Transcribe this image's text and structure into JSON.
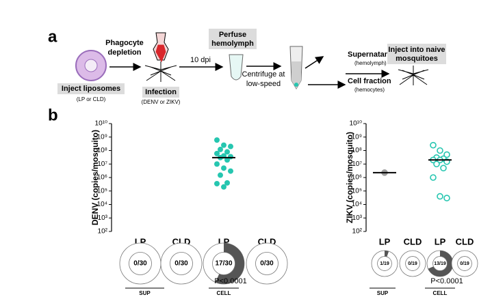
{
  "panel_a": {
    "label": "a",
    "phagocyte_depletion": [
      "Phagocyte",
      "depletion"
    ],
    "inject_liposomes": "Inject liposomes",
    "liposome_note": "(LP or CLD)",
    "infection": "Infection",
    "infection_note": "(DENV or ZIKV)",
    "dpi": "10 dpi",
    "perfuse": [
      "Perfuse",
      "hemolymph"
    ],
    "centrifuge": [
      "Centrifuge at",
      "low-speed"
    ],
    "supernatant": "Supernatant",
    "supernatant_note": "(hemolymph)",
    "cell_fraction": "Cell fraction",
    "cell_fraction_note": "(hemocytes)",
    "inject_naive": [
      "Inject into naive",
      "mosquitoes"
    ]
  },
  "panel_b": {
    "label": "b"
  },
  "chart_data": [
    {
      "type": "scatter",
      "y_label": "DENV (copies/mosquito)",
      "log_scale": true,
      "ylim": [
        100,
        10000000000
      ],
      "yticks": [
        {
          "value": 100,
          "label": "10²"
        },
        {
          "value": 1000,
          "label": "10³"
        },
        {
          "value": 10000,
          "label": "10⁴"
        },
        {
          "value": 100000,
          "label": "10⁵"
        },
        {
          "value": 1000000,
          "label": "10⁶"
        },
        {
          "value": 10000000,
          "label": "10⁷"
        },
        {
          "value": 100000000,
          "label": "10⁸"
        },
        {
          "value": 1000000000,
          "label": "10⁹"
        },
        {
          "value": 10000000000,
          "label": "10¹⁰"
        }
      ],
      "categories": [
        "LP",
        "CLD",
        "LP",
        "CLD"
      ],
      "values": [
        [],
        [],
        [
          600000000,
          250000000,
          200000000,
          120000000,
          80000000,
          60000000,
          40000000,
          35000000,
          30000000,
          20000000,
          10000000,
          5000000,
          3000000,
          1500000,
          400000,
          350000,
          200000
        ],
        []
      ],
      "medians": [
        null,
        null,
        30000000,
        null
      ],
      "point_colors": [
        null,
        null,
        "#26c6b0",
        null
      ],
      "marker_fill": true,
      "donuts": [
        {
          "label": "0/30",
          "positive": 0,
          "total": 30
        },
        {
          "label": "0/30",
          "positive": 0,
          "total": 30
        },
        {
          "label": "17/30",
          "positive": 17,
          "total": 30
        },
        {
          "label": "0/30",
          "positive": 0,
          "total": 30
        }
      ],
      "group_labels": [
        "SUP",
        "CELL"
      ],
      "annotation": "P<0.0001"
    },
    {
      "type": "scatter",
      "y_label": "ZIKV (copies/mosquito)",
      "log_scale": true,
      "ylim": [
        100,
        10000000000
      ],
      "yticks": [
        {
          "value": 100,
          "label": "10²"
        },
        {
          "value": 1000,
          "label": "10³"
        },
        {
          "value": 10000,
          "label": "10⁴"
        },
        {
          "value": 100000,
          "label": "10⁵"
        },
        {
          "value": 1000000,
          "label": "10⁶"
        },
        {
          "value": 10000000,
          "label": "10⁷"
        },
        {
          "value": 100000000,
          "label": "10⁸"
        },
        {
          "value": 1000000000,
          "label": "10⁹"
        },
        {
          "value": 10000000000,
          "label": "10¹⁰"
        }
      ],
      "categories": [
        "LP",
        "CLD",
        "LP",
        "CLD"
      ],
      "values": [
        [
          2300000
        ],
        [],
        [
          250000000,
          100000000,
          50000000,
          30000000,
          25000000,
          20000000,
          20000000,
          15000000,
          10000000,
          5000000,
          1000000,
          40000,
          30000
        ],
        []
      ],
      "medians": [
        2300000,
        null,
        20000000,
        null
      ],
      "point_colors": [
        "#9e9e9e",
        null,
        "#26c6b0",
        null
      ],
      "marker_fill": false,
      "donuts": [
        {
          "label": "1/19",
          "positive": 1,
          "total": 19
        },
        {
          "label": "0/19",
          "positive": 0,
          "total": 19
        },
        {
          "label": "13/19",
          "positive": 13,
          "total": 19
        },
        {
          "label": "0/19",
          "positive": 0,
          "total": 19
        }
      ],
      "group_labels": [
        "SUP",
        "CELL"
      ],
      "annotation": "P<0.0001"
    }
  ]
}
